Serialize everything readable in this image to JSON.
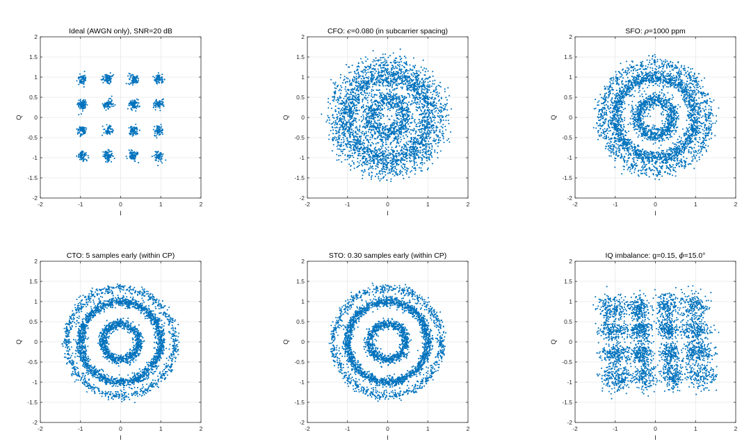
{
  "figure": {
    "background": "#ffffff",
    "marker_color": "#0072BD",
    "axis_color": "#262626",
    "grid_color": "#e6e6e6"
  },
  "chart_data": [
    {
      "type": "scatter",
      "title": "Ideal (AWGN only), SNR=20 dB",
      "title_parts": [
        {
          "t": "Ideal (AWGN only), SNR=20 dB"
        }
      ],
      "xlabel": "I",
      "ylabel": "Q",
      "xlim": [
        -2,
        2
      ],
      "ylim": [
        -2,
        2
      ],
      "xticks": [
        "-2",
        "-1",
        "0",
        "1",
        "2"
      ],
      "yticks": [
        "-2",
        "-1.5",
        "-1",
        "-0.5",
        "0",
        "0.5",
        "1",
        "1.5",
        "2"
      ],
      "grid": true,
      "constellation": "16-QAM",
      "levels": [
        -0.95,
        -0.32,
        0.32,
        0.95
      ],
      "effect": "awgn",
      "noise_std": 0.06
    },
    {
      "type": "scatter",
      "title": "CFO: ϵ=0.080 (in subcarrier spacing)",
      "title_parts": [
        {
          "t": "CFO: "
        },
        {
          "t": "ϵ",
          "italic": true
        },
        {
          "t": "=0.080 (in subcarrier spacing)"
        }
      ],
      "xlabel": "I",
      "ylabel": "Q",
      "xlim": [
        -2,
        2
      ],
      "ylim": [
        -2,
        2
      ],
      "xticks": [
        "-2",
        "-1",
        "0",
        "1",
        "2"
      ],
      "yticks": [
        "-2",
        "-1.5",
        "-1",
        "-0.5",
        "0",
        "0.5",
        "1",
        "1.5",
        "2"
      ],
      "grid": true,
      "constellation": "16-QAM",
      "levels": [
        -0.95,
        -0.32,
        0.32,
        0.95
      ],
      "effect": "rings",
      "ring_radii": [
        0.45,
        1.0,
        1.34
      ],
      "noise_std": 0.13
    },
    {
      "type": "scatter",
      "title": "SFO: ρ=1000 ppm",
      "title_parts": [
        {
          "t": "SFO: "
        },
        {
          "t": "ρ",
          "italic": true
        },
        {
          "t": "=1000 ppm"
        }
      ],
      "xlabel": "I",
      "ylabel": "Q",
      "xlim": [
        -2,
        2
      ],
      "ylim": [
        -2,
        2
      ],
      "xticks": [
        "-2",
        "-1",
        "0",
        "1",
        "2"
      ],
      "yticks": [
        "-2",
        "-1.5",
        "-1",
        "-0.5",
        "0",
        "0.5",
        "1",
        "1.5",
        "2"
      ],
      "grid": true,
      "constellation": "16-QAM",
      "levels": [
        -0.95,
        -0.32,
        0.32,
        0.95
      ],
      "effect": "rings",
      "ring_radii": [
        0.45,
        1.0,
        1.34
      ],
      "noise_std": 0.09
    },
    {
      "type": "scatter",
      "title": "CTO: 5 samples early (within CP)",
      "title_parts": [
        {
          "t": "CTO: 5 samples early (within CP)"
        }
      ],
      "xlabel": "I",
      "ylabel": "Q",
      "xlim": [
        -2,
        2
      ],
      "ylim": [
        -2,
        2
      ],
      "xticks": [
        "-2",
        "-1",
        "0",
        "1",
        "2"
      ],
      "yticks": [
        "-2",
        "-1.5",
        "-1",
        "-0.5",
        "0",
        "0.5",
        "1",
        "1.5",
        "2"
      ],
      "grid": true,
      "constellation": "16-QAM",
      "levels": [
        -0.95,
        -0.32,
        0.32,
        0.95
      ],
      "effect": "rings",
      "ring_radii": [
        0.45,
        1.0,
        1.34
      ],
      "noise_std": 0.06
    },
    {
      "type": "scatter",
      "title": "STO: 0.30 samples early (within CP)",
      "title_parts": [
        {
          "t": "STO: 0.30 samples early (within CP)"
        }
      ],
      "xlabel": "I",
      "ylabel": "Q",
      "xlim": [
        -2,
        2
      ],
      "ylim": [
        -2,
        2
      ],
      "xticks": [
        "-2",
        "-1",
        "0",
        "1",
        "2"
      ],
      "yticks": [
        "-2",
        "-1.5",
        "-1",
        "-0.5",
        "0",
        "0.5",
        "1",
        "1.5",
        "2"
      ],
      "grid": true,
      "constellation": "16-QAM",
      "levels": [
        -0.95,
        -0.32,
        0.32,
        0.95
      ],
      "effect": "rings",
      "ring_radii": [
        0.45,
        1.0,
        1.34
      ],
      "noise_std": 0.06
    },
    {
      "type": "scatter",
      "title": "IQ imbalance: g=0.15, ϕ=15.0°",
      "title_parts": [
        {
          "t": "IQ imbalance: g=0.15, "
        },
        {
          "t": "ϕ",
          "italic": true
        },
        {
          "t": "=15.0°"
        }
      ],
      "xlabel": "I",
      "ylabel": "Q",
      "xlim": [
        -2,
        2
      ],
      "ylim": [
        -2,
        2
      ],
      "xticks": [
        "-2",
        "-1",
        "0",
        "1",
        "2"
      ],
      "yticks": [
        "-2",
        "-1.5",
        "-1",
        "-0.5",
        "0",
        "0.5",
        "1",
        "1.5",
        "2"
      ],
      "grid": true,
      "constellation": "16-QAM",
      "levels": [
        -0.95,
        -0.32,
        0.32,
        0.95
      ],
      "effect": "iq_imbalance",
      "gain": 0.15,
      "phase_deg": 15.0,
      "noise_std": 0.13
    }
  ]
}
